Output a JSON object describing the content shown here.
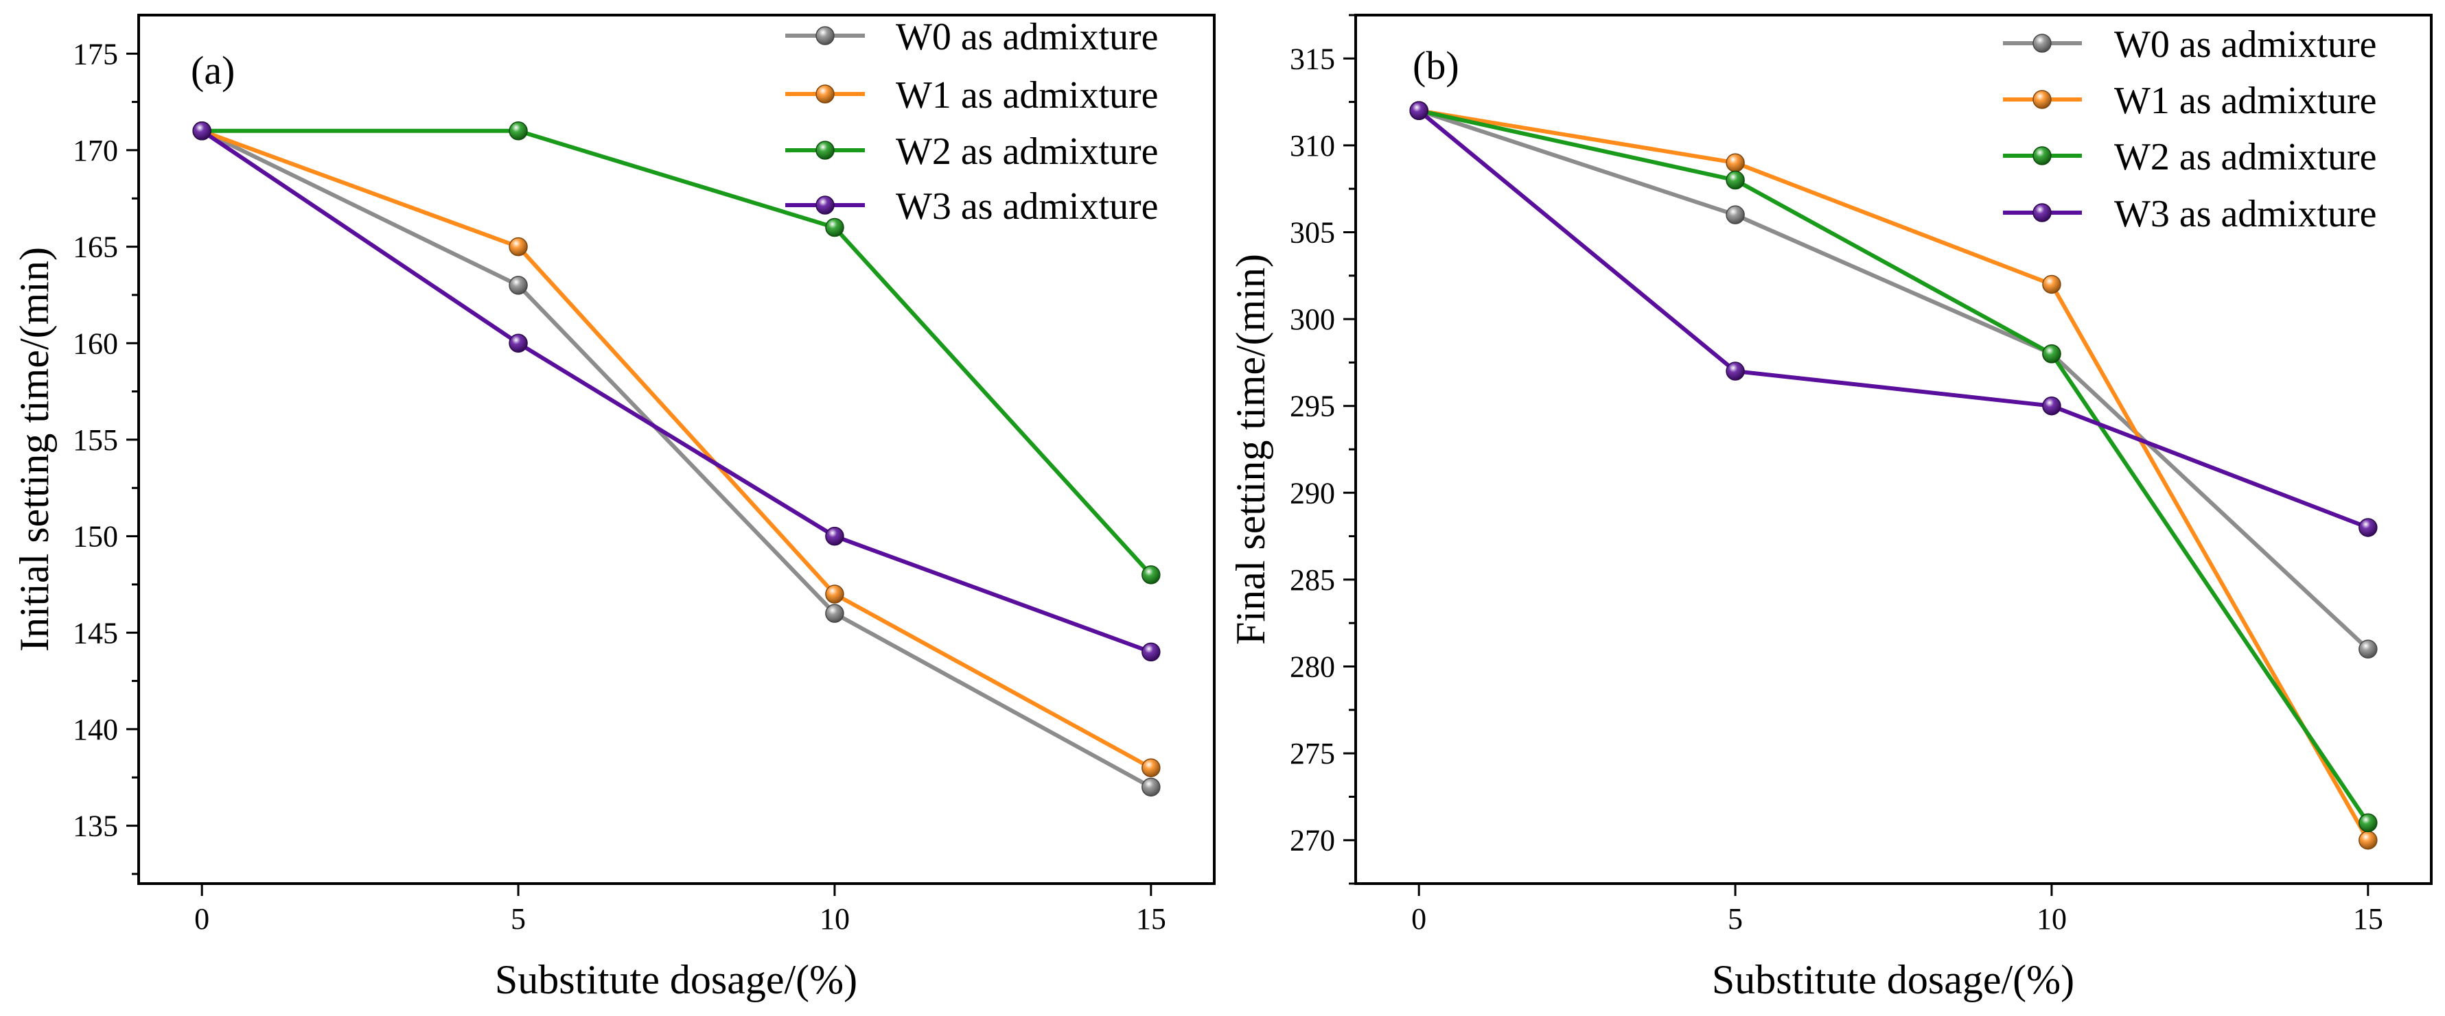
{
  "chart_data": [
    {
      "type": "line",
      "panel_label": "(a)",
      "xlabel": "Substitute dosage/(%)",
      "ylabel": "Initial setting time/(min)",
      "x": [
        0,
        5,
        10,
        15
      ],
      "xticks": [
        "0",
        "5",
        "10",
        "15"
      ],
      "xlim": [
        -1,
        16
      ],
      "ylim": [
        132,
        177
      ],
      "yticks": [
        "135",
        "140",
        "145",
        "150",
        "155",
        "160",
        "165",
        "170",
        "175"
      ],
      "legend_position": "top-right",
      "series": [
        {
          "name": "W0 as admixture",
          "color": "#8c8c8c",
          "values": [
            171,
            163,
            146,
            137
          ]
        },
        {
          "name": "W1 as admixture",
          "color": "#ff8c1a",
          "values": [
            171,
            165,
            147,
            138
          ]
        },
        {
          "name": "W2 as admixture",
          "color": "#1a9a1a",
          "values": [
            171,
            171,
            166,
            148
          ]
        },
        {
          "name": "W3 as admixture",
          "color": "#5a0f9c",
          "values": [
            171,
            160,
            150,
            144
          ]
        }
      ]
    },
    {
      "type": "line",
      "panel_label": "(b)",
      "xlabel": "Substitute dosage/(%)",
      "ylabel": "Final setting time/(min)",
      "x": [
        0,
        5,
        10,
        15
      ],
      "xticks": [
        "0",
        "5",
        "10",
        "15"
      ],
      "xlim": [
        -1,
        16
      ],
      "ylim": [
        267.5,
        317.5
      ],
      "yticks": [
        "270",
        "275",
        "280",
        "285",
        "290",
        "295",
        "300",
        "305",
        "310",
        "315"
      ],
      "legend_position": "top-right",
      "series": [
        {
          "name": "W0 as admixture",
          "color": "#8c8c8c",
          "values": [
            312,
            306,
            298,
            281
          ]
        },
        {
          "name": "W1 as admixture",
          "color": "#ff8c1a",
          "values": [
            312,
            309,
            302,
            270
          ]
        },
        {
          "name": "W2 as admixture",
          "color": "#1a9a1a",
          "values": [
            312,
            308,
            298,
            271
          ]
        },
        {
          "name": "W3 as admixture",
          "color": "#5a0f9c",
          "values": [
            312,
            297,
            295,
            288
          ]
        }
      ]
    }
  ]
}
